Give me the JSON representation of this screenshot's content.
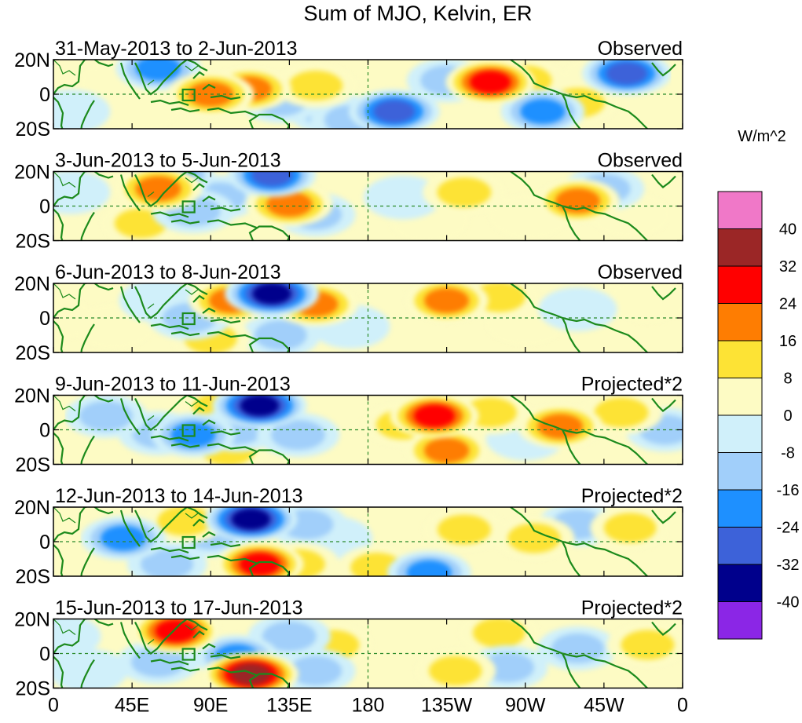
{
  "chart_data": {
    "type": "heatmap",
    "title": "Sum of MJO, Kelvin, ER",
    "colorbar": {
      "units": "W/m^2",
      "tick_labels": [
        "40",
        "32",
        "24",
        "16",
        "8",
        "0",
        "-8",
        "-16",
        "-24",
        "-32",
        "-40"
      ],
      "levels": [
        -40,
        -32,
        -24,
        -16,
        -8,
        0,
        8,
        16,
        24,
        32,
        40
      ],
      "colors": [
        "#8b26e6",
        "#00008c",
        "#3d62d9",
        "#1e90ff",
        "#a1cffa",
        "#d0f0fa",
        "#fdfbc4",
        "#fde335",
        "#fe7d02",
        "#ff0000",
        "#9b2626",
        "#f078c8"
      ]
    },
    "x_ticks": [
      "0",
      "45E",
      "90E",
      "135E",
      "180",
      "135W",
      "90W",
      "45W",
      "0"
    ],
    "y_ticks": [
      "20N",
      "0",
      "20S"
    ],
    "xlim": [
      0,
      360
    ],
    "ylim": [
      -20,
      20
    ],
    "panels": [
      {
        "date_range": "31-May-2013 to 2-Jun-2013",
        "status": "Observed",
        "features": [
          {
            "lon": 90,
            "lat": 0,
            "val": 26
          },
          {
            "lon": 112,
            "lat": 3,
            "val": 22
          },
          {
            "lon": 60,
            "lat": 15,
            "val": -22
          },
          {
            "lon": 38,
            "lat": 7,
            "val": 9
          },
          {
            "lon": 50,
            "lat": -8,
            "val": 10
          },
          {
            "lon": 130,
            "lat": -4,
            "val": -14
          },
          {
            "lon": 150,
            "lat": 5,
            "val": 18
          },
          {
            "lon": 157,
            "lat": -10,
            "val": -12
          },
          {
            "lon": 195,
            "lat": -10,
            "val": -34
          },
          {
            "lon": 170,
            "lat": -15,
            "val": -12
          },
          {
            "lon": 225,
            "lat": 8,
            "val": -12
          },
          {
            "lon": 250,
            "lat": 7,
            "val": 30
          },
          {
            "lon": 270,
            "lat": 8,
            "val": 14
          },
          {
            "lon": 315,
            "lat": 10,
            "val": 10
          },
          {
            "lon": 328,
            "lat": 12,
            "val": -30
          },
          {
            "lon": 300,
            "lat": -5,
            "val": 18
          },
          {
            "lon": 280,
            "lat": -10,
            "val": -20
          },
          {
            "lon": 10,
            "lat": -10,
            "val": -10
          }
        ]
      },
      {
        "date_range": "3-Jun-2013 to 5-Jun-2013",
        "status": "Observed",
        "features": [
          {
            "lon": 60,
            "lat": 10,
            "val": 26
          },
          {
            "lon": 68,
            "lat": 18,
            "val": -20
          },
          {
            "lon": 80,
            "lat": -3,
            "val": -18
          },
          {
            "lon": 95,
            "lat": 5,
            "val": -12
          },
          {
            "lon": 125,
            "lat": 18,
            "val": -28
          },
          {
            "lon": 135,
            "lat": 1,
            "val": 26
          },
          {
            "lon": 150,
            "lat": -5,
            "val": -12
          },
          {
            "lon": 50,
            "lat": -10,
            "val": 12
          },
          {
            "lon": 200,
            "lat": 5,
            "val": -10
          },
          {
            "lon": 235,
            "lat": 8,
            "val": 18
          },
          {
            "lon": 215,
            "lat": -8,
            "val": 8
          },
          {
            "lon": 272,
            "lat": -6,
            "val": 10
          },
          {
            "lon": 300,
            "lat": 3,
            "val": 20
          },
          {
            "lon": 315,
            "lat": 10,
            "val": -14
          },
          {
            "lon": 10,
            "lat": 8,
            "val": -10
          },
          {
            "lon": 330,
            "lat": -5,
            "val": 10
          }
        ]
      },
      {
        "date_range": "6-Jun-2013 to 8-Jun-2013",
        "status": "Observed",
        "features": [
          {
            "lon": 125,
            "lat": 14,
            "val": -40
          },
          {
            "lon": 102,
            "lat": 10,
            "val": 24
          },
          {
            "lon": 150,
            "lat": 8,
            "val": 22
          },
          {
            "lon": 78,
            "lat": 0,
            "val": -18
          },
          {
            "lon": 90,
            "lat": -12,
            "val": 14
          },
          {
            "lon": 60,
            "lat": 10,
            "val": -10
          },
          {
            "lon": 35,
            "lat": -5,
            "val": 8
          },
          {
            "lon": 130,
            "lat": -10,
            "val": -12
          },
          {
            "lon": 170,
            "lat": -5,
            "val": -10
          },
          {
            "lon": 225,
            "lat": 10,
            "val": 20
          },
          {
            "lon": 255,
            "lat": 12,
            "val": 12
          },
          {
            "lon": 270,
            "lat": -3,
            "val": 10
          },
          {
            "lon": 300,
            "lat": 5,
            "val": -10
          },
          {
            "lon": 340,
            "lat": 10,
            "val": 8
          },
          {
            "lon": 0,
            "lat": 0,
            "val": 10
          }
        ]
      },
      {
        "date_range": "9-Jun-2013 to 11-Jun-2013",
        "status": "Projected*2",
        "features": [
          {
            "lon": 118,
            "lat": 14,
            "val": -40
          },
          {
            "lon": 95,
            "lat": 13,
            "val": 16
          },
          {
            "lon": 80,
            "lat": -3,
            "val": -20
          },
          {
            "lon": 105,
            "lat": 0,
            "val": -18
          },
          {
            "lon": 30,
            "lat": 8,
            "val": -16
          },
          {
            "lon": 60,
            "lat": -2,
            "val": -14
          },
          {
            "lon": 140,
            "lat": -3,
            "val": -18
          },
          {
            "lon": 100,
            "lat": -12,
            "val": 16
          },
          {
            "lon": 200,
            "lat": 3,
            "val": 16
          },
          {
            "lon": 218,
            "lat": 8,
            "val": 30
          },
          {
            "lon": 250,
            "lat": 10,
            "val": 14
          },
          {
            "lon": 225,
            "lat": -12,
            "val": 22
          },
          {
            "lon": 290,
            "lat": 2,
            "val": 24
          },
          {
            "lon": 325,
            "lat": 10,
            "val": 18
          },
          {
            "lon": 350,
            "lat": 0,
            "val": -12
          },
          {
            "lon": 270,
            "lat": -5,
            "val": -10
          }
        ]
      },
      {
        "date_range": "12-Jun-2013 to 14-Jun-2013",
        "status": "Projected*2",
        "features": [
          {
            "lon": 113,
            "lat": 13,
            "val": -38
          },
          {
            "lon": 118,
            "lat": -13,
            "val": 28
          },
          {
            "lon": 140,
            "lat": -13,
            "val": 18
          },
          {
            "lon": 75,
            "lat": 12,
            "val": 18
          },
          {
            "lon": 40,
            "lat": 2,
            "val": -22
          },
          {
            "lon": 90,
            "lat": 4,
            "val": -14
          },
          {
            "lon": 145,
            "lat": 10,
            "val": -14
          },
          {
            "lon": 160,
            "lat": 2,
            "val": -10
          },
          {
            "lon": 65,
            "lat": -13,
            "val": -12
          },
          {
            "lon": 185,
            "lat": -15,
            "val": 12
          },
          {
            "lon": 215,
            "lat": -18,
            "val": -20
          },
          {
            "lon": 235,
            "lat": 7,
            "val": 16
          },
          {
            "lon": 275,
            "lat": 2,
            "val": 14
          },
          {
            "lon": 300,
            "lat": 10,
            "val": -12
          },
          {
            "lon": 330,
            "lat": 8,
            "val": 12
          }
        ]
      },
      {
        "date_range": "15-Jun-2013 to 17-Jun-2013",
        "status": "Projected*2",
        "features": [
          {
            "lon": 70,
            "lat": 13,
            "val": 28
          },
          {
            "lon": 113,
            "lat": -12,
            "val": 42
          },
          {
            "lon": 105,
            "lat": -2,
            "val": -20
          },
          {
            "lon": 60,
            "lat": -5,
            "val": -18
          },
          {
            "lon": 135,
            "lat": 10,
            "val": -18
          },
          {
            "lon": 160,
            "lat": 5,
            "val": 12
          },
          {
            "lon": 150,
            "lat": -10,
            "val": -12
          },
          {
            "lon": 230,
            "lat": -10,
            "val": 14
          },
          {
            "lon": 255,
            "lat": 12,
            "val": 12
          },
          {
            "lon": 260,
            "lat": -8,
            "val": -12
          },
          {
            "lon": 300,
            "lat": 3,
            "val": -14
          },
          {
            "lon": 340,
            "lat": 5,
            "val": 16
          },
          {
            "lon": 20,
            "lat": -10,
            "val": -10
          },
          {
            "lon": 5,
            "lat": 10,
            "val": -8
          }
        ]
      }
    ]
  }
}
